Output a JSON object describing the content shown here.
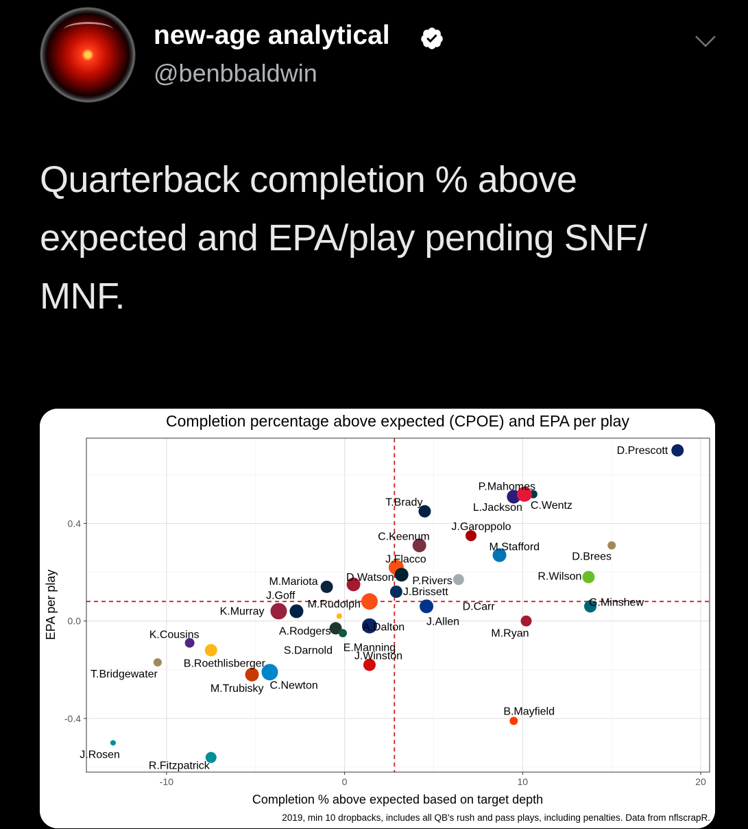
{
  "profile": {
    "display_name": "new-age analytical",
    "handle": "@benbbaldwin",
    "avatar_icon": "hal9000-eye-icon",
    "verified_icon": "verified-badge-icon",
    "menu_icon": "chevron-down-icon"
  },
  "tweet": {
    "text": "Quarterback completion % above expected and EPA/play pending SNF/ MNF."
  },
  "colors": {
    "background": "#000000",
    "text": "#e8e8e8",
    "handle": "#aeb4b9",
    "refline": "#cc2222"
  },
  "chart_data": {
    "type": "scatter",
    "title": "Completion percentage above expected (CPOE) and EPA per play",
    "xlabel": "Completion % above expected based on target depth",
    "ylabel": "EPA per play",
    "caption": "2019, min 10 dropbacks, includes all QB's rush and pass plays, including penalties. Data from nflscrapR.",
    "xlim": [
      -14.5,
      20.5
    ],
    "ylim": [
      -0.62,
      0.75
    ],
    "x_ticks": [
      -10,
      0,
      10,
      20
    ],
    "y_ticks": [
      -0.4,
      0.0,
      0.4
    ],
    "x_tick_labels": [
      "-10",
      "0",
      "10",
      "20"
    ],
    "y_tick_labels": [
      "-0.4",
      "0.0",
      "0.4"
    ],
    "vline_x": 2.8,
    "hline_y": 0.08,
    "grid": true,
    "points": [
      {
        "name": "D.Prescott",
        "x": 18.7,
        "y": 0.7,
        "size": 9,
        "color": "#0b2265"
      },
      {
        "name": "P.Mahomes",
        "x": 9.5,
        "y": 0.51,
        "size": 10,
        "color": "#2b1b7a"
      },
      {
        "name": "C.Wentz",
        "x": 10.6,
        "y": 0.52,
        "size": 6,
        "color": "#003b48"
      },
      {
        "name": "L.Jackson",
        "x": 10.1,
        "y": 0.52,
        "size": 11,
        "color": "#e31837"
      },
      {
        "name": "T.Brady",
        "x": 4.5,
        "y": 0.45,
        "size": 9,
        "color": "#002244"
      },
      {
        "name": "J.Garoppolo",
        "x": 7.1,
        "y": 0.35,
        "size": 8,
        "color": "#aa0000"
      },
      {
        "name": "C.Keenum",
        "x": 4.2,
        "y": 0.31,
        "size": 10,
        "color": "#773141"
      },
      {
        "name": "D.Brees",
        "x": 15.0,
        "y": 0.31,
        "size": 6,
        "color": "#9f8958"
      },
      {
        "name": "M.Stafford",
        "x": 8.7,
        "y": 0.27,
        "size": 10,
        "color": "#0076b6"
      },
      {
        "name": "J.Flacco",
        "x": 2.9,
        "y": 0.22,
        "size": 11,
        "color": "#fb4f14"
      },
      {
        "name": "D.Watson",
        "x": 3.2,
        "y": 0.19,
        "size": 10,
        "color": "#03202f"
      },
      {
        "name": "P.Rivers",
        "x": 6.4,
        "y": 0.17,
        "size": 8,
        "color": "#a5acaf"
      },
      {
        "name": "R.Wilson",
        "x": 13.7,
        "y": 0.18,
        "size": 9,
        "color": "#69be28"
      },
      {
        "name": "M.Mariota",
        "x": -1.0,
        "y": 0.14,
        "size": 9,
        "color": "#0c2340"
      },
      {
        "name": "D.Carr",
        "x": 0.5,
        "y": 0.15,
        "size": 10,
        "color": "#a71930"
      },
      {
        "name": "J.Brissett",
        "x": 2.9,
        "y": 0.12,
        "size": 9,
        "color": "#002c5f"
      },
      {
        "name": "J.Allen",
        "x": 4.6,
        "y": 0.06,
        "size": 10,
        "color": "#00338d"
      },
      {
        "name": "G.Minshew",
        "x": 13.8,
        "y": 0.06,
        "size": 9,
        "color": "#006778"
      },
      {
        "name": "M.Rudolph",
        "x": 1.4,
        "y": 0.08,
        "size": 12,
        "color": "#fb4f14"
      },
      {
        "name": "A.Dalton",
        "x": -0.3,
        "y": 0.02,
        "size": 4,
        "color": "#ffb612"
      },
      {
        "name": "K.Murray",
        "x": -3.7,
        "y": 0.04,
        "size": 12,
        "color": "#97233f"
      },
      {
        "name": "J.Goff",
        "x": -2.7,
        "y": 0.04,
        "size": 10,
        "color": "#002244"
      },
      {
        "name": "A.Rodgers",
        "x": -0.5,
        "y": -0.03,
        "size": 9,
        "color": "#203731"
      },
      {
        "name": "S.Darnold",
        "x": -0.1,
        "y": -0.05,
        "size": 6,
        "color": "#125740"
      },
      {
        "name": "E.Manning",
        "x": 1.4,
        "y": -0.02,
        "size": 11,
        "color": "#0b2265"
      },
      {
        "name": "M.Ryan",
        "x": 10.2,
        "y": 0.0,
        "size": 8,
        "color": "#a71930"
      },
      {
        "name": "K.Cousins",
        "x": -8.7,
        "y": -0.09,
        "size": 7,
        "color": "#4f2683"
      },
      {
        "name": "B.Roethlisberger",
        "x": -7.5,
        "y": -0.12,
        "size": 9,
        "color": "#ffb612"
      },
      {
        "name": "J.Winston",
        "x": 1.4,
        "y": -0.18,
        "size": 9,
        "color": "#d50a0a"
      },
      {
        "name": "T.Bridgewater",
        "x": -10.5,
        "y": -0.17,
        "size": 6,
        "color": "#9f8958"
      },
      {
        "name": "M.Trubisky",
        "x": -5.2,
        "y": -0.22,
        "size": 10,
        "color": "#c83803"
      },
      {
        "name": "C.Newton",
        "x": -4.2,
        "y": -0.21,
        "size": 12,
        "color": "#0085ca"
      },
      {
        "name": "B.Mayfield",
        "x": 9.5,
        "y": -0.41,
        "size": 6,
        "color": "#ff3c00"
      },
      {
        "name": "J.Rosen",
        "x": -13.0,
        "y": -0.5,
        "size": 4,
        "color": "#008e97"
      },
      {
        "name": "R.Fitzpatrick",
        "x": -7.5,
        "y": -0.56,
        "size": 8,
        "color": "#008e97"
      }
    ]
  }
}
